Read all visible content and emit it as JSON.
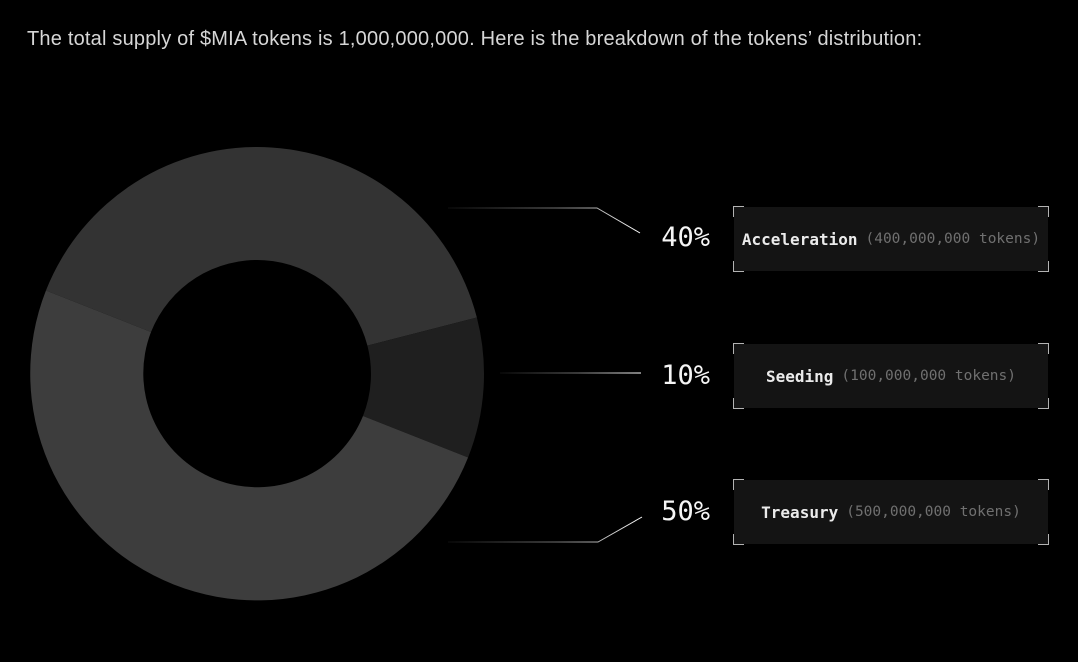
{
  "title": "The total supply of $MIA tokens is 1,000,000,000. Here is the breakdown of the tokens’ distribution:",
  "chart_data": {
    "type": "pie",
    "subtype": "donut",
    "token_symbol": "$MIA",
    "total_supply": 1000000000,
    "rotation_deg_clockwise_from_3oclock": 201.6,
    "legend_position": "right",
    "segments": [
      {
        "label": "Acceleration",
        "percent": 40,
        "value": 400000000,
        "color": "#333333"
      },
      {
        "label": "Seeding",
        "percent": 10,
        "value": 100000000,
        "color": "#1f1f1f"
      },
      {
        "label": "Treasury",
        "percent": 50,
        "value": 500000000,
        "color": "#3d3d3d"
      }
    ]
  },
  "callouts": [
    {
      "percent": "40%",
      "name": "Acceleration",
      "detail": "(400,000,000 tokens)"
    },
    {
      "percent": "10%",
      "name": "Seeding",
      "detail": "(100,000,000 tokens)"
    },
    {
      "percent": "50%",
      "name": "Treasury",
      "detail": "(500,000,000 tokens)"
    }
  ],
  "colors": {
    "background": "#000000",
    "title_text": "#d6d6d6",
    "percent_text": "#f5f5f5",
    "box_background": "#141414",
    "box_corner_brackets": "#b3b3b3",
    "box_name_text": "#ebebeb",
    "box_detail_text": "#707070",
    "connector_line": "#ffffff"
  }
}
